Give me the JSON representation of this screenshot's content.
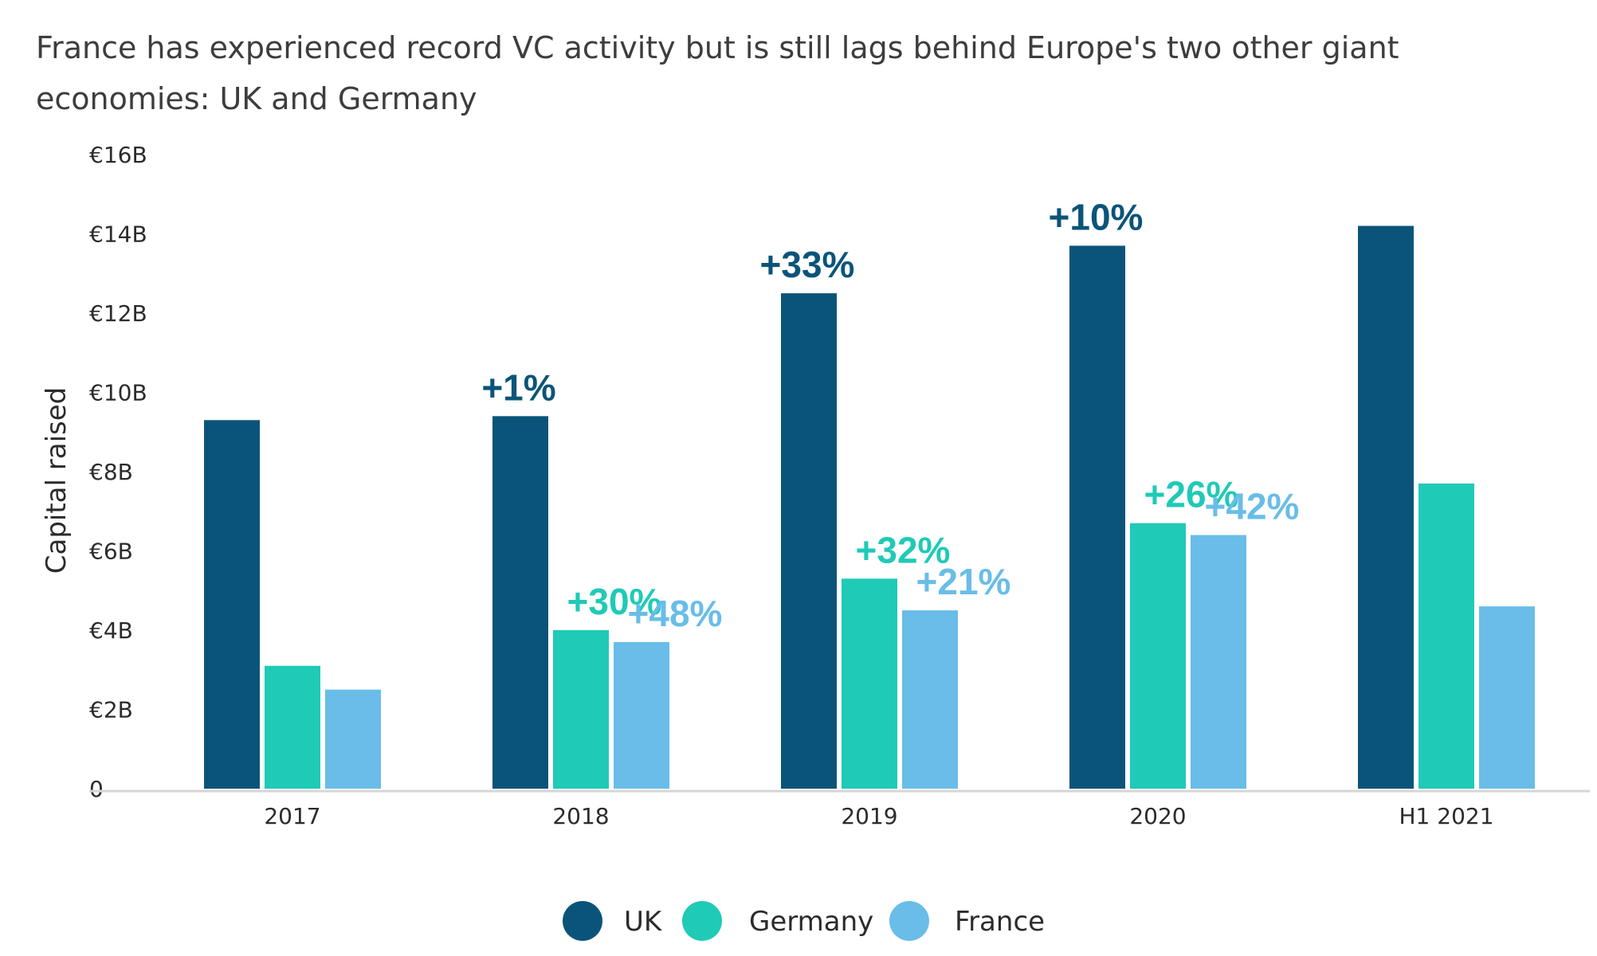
{
  "chart_data": {
    "type": "bar",
    "title": "France has experienced record VC activity but is still lags behind Europe's two other giant economies: UK and Germany",
    "xlabel": "",
    "ylabel": "Capital raised",
    "ylim": [
      0,
      16
    ],
    "yticks": [
      0,
      2,
      4,
      6,
      8,
      10,
      12,
      14,
      16
    ],
    "ytick_labels": [
      "0",
      "€2B",
      "€4B",
      "€6B",
      "€8B",
      "€10B",
      "€12B",
      "€14B",
      "€16B"
    ],
    "categories": [
      "2017",
      "2018",
      "2019",
      "2020",
      "H1 2021"
    ],
    "series": [
      {
        "name": "UK",
        "color": "#0b5479",
        "values": [
          9.3,
          9.4,
          12.5,
          13.7,
          14.2
        ],
        "annotations": [
          "",
          "+1%",
          "+33%",
          "+10%",
          ""
        ]
      },
      {
        "name": "Germany",
        "color": "#1fcab7",
        "values": [
          3.1,
          4.0,
          5.3,
          6.7,
          7.7
        ],
        "annotations": [
          "",
          "+30%",
          "+32%",
          "+26%",
          ""
        ]
      },
      {
        "name": "France",
        "color": "#69bde8",
        "values": [
          2.5,
          3.7,
          4.5,
          6.4,
          4.6
        ],
        "annotations": [
          "",
          "+48%",
          "+21%",
          "+42%",
          ""
        ]
      }
    ],
    "annotation_colors": [
      "#0b5479",
      "#1fcab7",
      "#69bde8"
    ],
    "grid": false,
    "legend_position": "bottom-center"
  }
}
